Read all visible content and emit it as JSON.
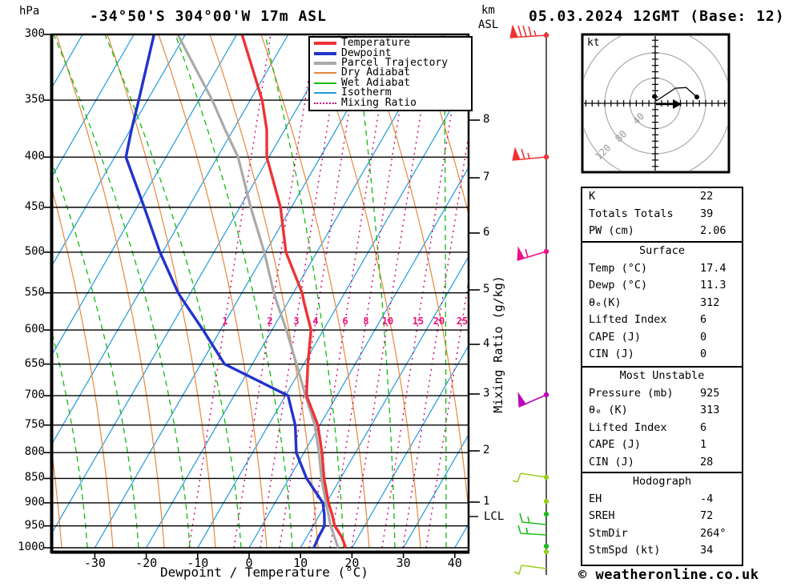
{
  "titles": {
    "station": "-34°50'S 304°00'W 17m ASL",
    "datetime": "05.03.2024 12GMT (Base: 12)",
    "copyright": "© weatheronline.co.uk"
  },
  "axes": {
    "pressure_unit": "hPa",
    "pressure_ticks": [
      "300",
      "350",
      "400",
      "450",
      "500",
      "550",
      "600",
      "650",
      "700",
      "750",
      "800",
      "850",
      "900",
      "950",
      "1000"
    ],
    "x_ticks": [
      "-30",
      "-20",
      "-10",
      "0",
      "10",
      "20",
      "30",
      "40"
    ],
    "x_title": "Dewpoint / Temperature (°C)",
    "km_unit": "km",
    "asl_label": "ASL",
    "km_ticks": [
      "8",
      "7",
      "6",
      "5",
      "4",
      "3",
      "2",
      "1"
    ],
    "lcl_label": "LCL",
    "mixing_axis_label": "Mixing Ratio (g/kg)",
    "mixing_ratio_values": [
      "1",
      "2",
      "3",
      "4",
      "6",
      "8",
      "10",
      "15",
      "20",
      "25"
    ]
  },
  "legend": {
    "items": [
      {
        "label": "Temperature",
        "color": "#ee3333",
        "thick": true,
        "dotted": false
      },
      {
        "label": "Dewpoint",
        "color": "#2233cc",
        "thick": true,
        "dotted": false
      },
      {
        "label": "Parcel Trajectory",
        "color": "#aaaaaa",
        "thick": true,
        "dotted": false
      },
      {
        "label": "Dry Adiabat",
        "color": "#e8883c",
        "thick": false,
        "dotted": false
      },
      {
        "label": "Wet Adiabat",
        "color": "#11bb11",
        "thick": false,
        "dotted": false
      },
      {
        "label": "Isotherm",
        "color": "#2299dd",
        "thick": false,
        "dotted": false
      },
      {
        "label": "Mixing Ratio",
        "color": "#cc0077",
        "thick": false,
        "dotted": true
      }
    ]
  },
  "hodograph": {
    "unit_label": "kt",
    "ring_labels": [
      "40",
      "80",
      "120"
    ],
    "rings_kt": [
      40,
      80,
      120
    ],
    "trace_points_kt": [
      [
        -1,
        11
      ],
      [
        2,
        4
      ],
      [
        32,
        24
      ],
      [
        49,
        25
      ],
      [
        66,
        10
      ]
    ],
    "storm_motion": {
      "dir_deg": 264,
      "speed_kt": 34
    }
  },
  "stats": {
    "sections": [
      {
        "header": "",
        "rows": [
          [
            "K",
            "22"
          ],
          [
            "Totals Totals",
            "39"
          ],
          [
            "PW (cm)",
            "2.06"
          ]
        ]
      },
      {
        "header": "Surface",
        "rows": [
          [
            "Temp (°C)",
            "17.4"
          ],
          [
            "Dewp (°C)",
            "11.3"
          ],
          [
            "θₑ(K)",
            "312"
          ],
          [
            "Lifted Index",
            "6"
          ],
          [
            "CAPE (J)",
            "0"
          ],
          [
            "CIN (J)",
            "0"
          ]
        ]
      },
      {
        "header": "Most Unstable",
        "rows": [
          [
            "Pressure (mb)",
            "925"
          ],
          [
            "θₑ (K)",
            "313"
          ],
          [
            "Lifted Index",
            "6"
          ],
          [
            "CAPE (J)",
            "1"
          ],
          [
            "CIN (J)",
            "28"
          ]
        ]
      },
      {
        "header": "Hodograph",
        "rows": [
          [
            "EH",
            "-4"
          ],
          [
            "SREH",
            "72"
          ],
          [
            "StmDir",
            "264°"
          ],
          [
            "StmSpd (kt)",
            "34"
          ]
        ]
      }
    ]
  },
  "wind_barbs": [
    {
      "level": "300 hPa",
      "color": "#ee3333",
      "flags": 1,
      "full": 3,
      "half": 1
    },
    {
      "level": "400 hPa",
      "color": "#ee3333",
      "flags": 1,
      "full": 1,
      "half": 1
    },
    {
      "level": "500 hPa",
      "color": "#ee1188",
      "flags": 1,
      "full": 0,
      "half": 1
    },
    {
      "level": "700 hPa",
      "color": "#bb00bb",
      "flags": 1,
      "full": 0,
      "half": 0
    },
    {
      "level": "850 hPa",
      "color": "#99cc22",
      "flags": 0,
      "full": 1,
      "half": 1
    },
    {
      "level": "925 hPa",
      "color": "#22bb22",
      "flags": 0,
      "full": 1,
      "half": 1
    },
    {
      "level": "950 hPa",
      "color": "#22bb22",
      "flags": 0,
      "full": 1,
      "half": 1
    },
    {
      "level": "near surface",
      "color": "#99cc22",
      "flags": 0,
      "full": 1,
      "half": 1
    }
  ],
  "chart_data": {
    "type": "skew-t-log-p",
    "title": "-34°50'S 304°00'W 17m ASL  05.03.2024 12GMT (Base: 12)",
    "xlabel": "Dewpoint / Temperature (°C)",
    "ylabel": "hPa",
    "xlim": [
      -38,
      43
    ],
    "pressure_lim": [
      300,
      1000
    ],
    "pressure_levels": [
      300,
      350,
      375,
      400,
      450,
      500,
      550,
      562,
      600,
      650,
      700,
      750,
      800,
      850,
      900,
      925,
      950,
      975,
      1000
    ],
    "series": [
      {
        "name": "Temperature (°C)",
        "values": [
          -59.0,
          -47.7,
          -43.5,
          -40.4,
          -32.1,
          -26.0,
          -18.3,
          -16.9,
          -12.4,
          -9.2,
          -5.9,
          -0.4,
          3.5,
          6.8,
          10.4,
          12.4,
          14.2,
          16.8,
          18.8
        ]
      },
      {
        "name": "Dewpoint (°C)",
        "values": [
          -76.1,
          -71.7,
          -69.8,
          -67.8,
          -58.6,
          -50.5,
          -42.4,
          -40.2,
          -33.4,
          -25.4,
          -9.5,
          -4.8,
          -1.5,
          3.4,
          9.3,
          10.9,
          12.2,
          12.3,
          12.6
        ]
      },
      {
        "name": "Parcel Trajectory (°C)",
        "values": [
          -71.5,
          -57.4,
          -51.6,
          -46.0,
          -37.9,
          -30.2,
          -23.8,
          -22.2,
          -17.2,
          -11.4,
          -6.1,
          -1.0,
          2.9,
          6.3,
          9.9,
          11.7,
          13.4,
          15.4,
          17.3
        ]
      }
    ],
    "indices": {
      "K": 22,
      "Totals_Totals": 39,
      "PW_cm": 2.06,
      "surface": {
        "temp_c": 17.4,
        "dewp_c": 11.3,
        "theta_e_k": 312,
        "lifted_index": 6,
        "cape_j": 0,
        "cin_j": 0
      },
      "most_unstable": {
        "pressure_mb": 925,
        "theta_e_k": 313,
        "lifted_index": 6,
        "cape_j": 1,
        "cin_j": 28
      },
      "hodograph": {
        "EH": -4,
        "SREH": 72,
        "StmDir_deg": 264,
        "StmSpd_kt": 34
      }
    }
  }
}
